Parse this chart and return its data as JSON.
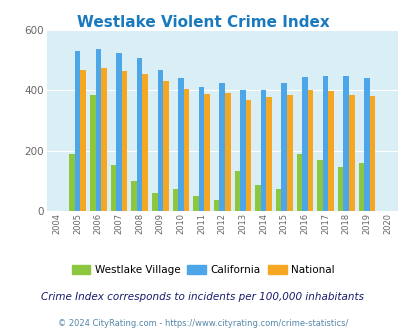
{
  "title": "Westlake Violent Crime Index",
  "title_color": "#1a7abf",
  "subtitle": "Crime Index corresponds to incidents per 100,000 inhabitants",
  "footer": "© 2024 CityRating.com - https://www.cityrating.com/crime-statistics/",
  "years": [
    2004,
    2005,
    2006,
    2007,
    2008,
    2009,
    2010,
    2011,
    2012,
    2013,
    2014,
    2015,
    2016,
    2017,
    2018,
    2019,
    2020
  ],
  "westlake": [
    null,
    190,
    385,
    153,
    100,
    60,
    75,
    50,
    38,
    133,
    85,
    72,
    190,
    168,
    145,
    158,
    null
  ],
  "california": [
    null,
    530,
    535,
    523,
    507,
    468,
    440,
    411,
    424,
    400,
    400,
    424,
    444,
    446,
    447,
    440,
    null
  ],
  "national": [
    null,
    468,
    472,
    465,
    455,
    430,
    404,
    389,
    390,
    368,
    376,
    383,
    400,
    397,
    383,
    380,
    null
  ],
  "wv_color": "#8dc63f",
  "ca_color": "#4da6e8",
  "nat_color": "#f5a623",
  "fig_bg": "#ffffff",
  "plot_bg": "#daeef5",
  "ylim": [
    0,
    600
  ],
  "yticks": [
    0,
    200,
    400,
    600
  ],
  "legend_labels": [
    "Westlake Village",
    "California",
    "National"
  ],
  "subtitle_color": "#1a1a6e",
  "footer_color": "#5588aa",
  "title_fontsize": 11,
  "subtitle_fontsize": 7.5,
  "footer_fontsize": 6.0
}
